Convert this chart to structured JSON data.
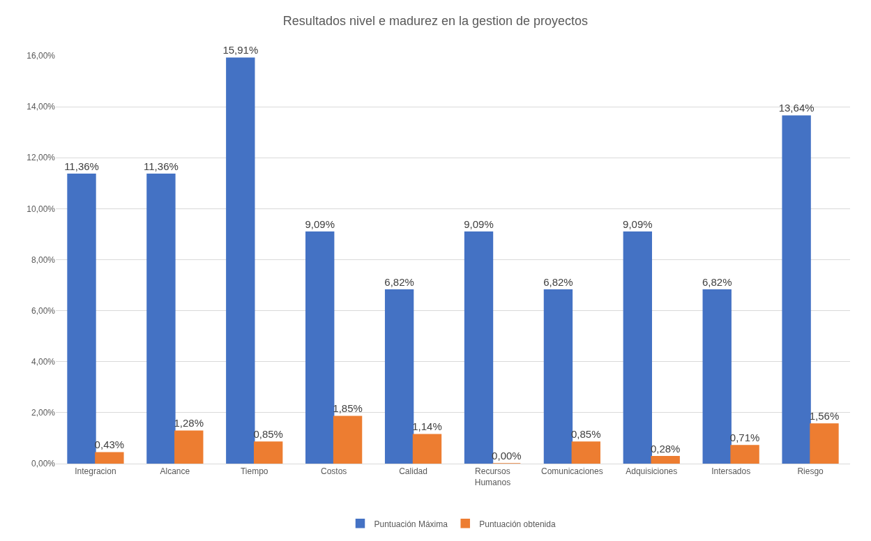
{
  "chart_data": {
    "type": "bar",
    "title": "Resultados nivel e madurez en la gestion de proyectos",
    "categories": [
      "Integracion",
      "Alcance",
      "Tiempo",
      "Costos",
      "Calidad",
      "Recursos Humanos",
      "Comunicaciones",
      "Adquisiciones",
      "Intersados",
      "Riesgo"
    ],
    "series": [
      {
        "name": "Puntuación Máxima",
        "color": "#4472c4",
        "values": [
          11.36,
          11.36,
          15.91,
          9.09,
          6.82,
          9.09,
          6.82,
          9.09,
          6.82,
          13.64
        ],
        "value_labels": [
          "11,36%",
          "11,36%",
          "15,91%",
          "9,09%",
          "6,82%",
          "9,09%",
          "6,82%",
          "9,09%",
          "6,82%",
          "13,64%"
        ]
      },
      {
        "name": "Puntuación obtenida",
        "color": "#ed7d31",
        "values": [
          0.43,
          1.28,
          0.85,
          1.85,
          1.14,
          0.0,
          0.85,
          0.28,
          0.71,
          1.56
        ],
        "value_labels": [
          "0,43%",
          "1,28%",
          "0,85%",
          "1,85%",
          "1,14%",
          "0,00%",
          "0,85%",
          "0,28%",
          "0,71%",
          "1,56%"
        ]
      }
    ],
    "ylim": [
      0,
      16
    ],
    "yticks": [
      {
        "value": 0,
        "label": "0,00%"
      },
      {
        "value": 2,
        "label": "2,00%"
      },
      {
        "value": 4,
        "label": "4,00%"
      },
      {
        "value": 6,
        "label": "6,00%"
      },
      {
        "value": 8,
        "label": "8,00%"
      },
      {
        "value": 10,
        "label": "10,00%"
      },
      {
        "value": 12,
        "label": "12,00%"
      },
      {
        "value": 14,
        "label": "14,00%"
      },
      {
        "value": 16,
        "label": "16,00%"
      }
    ],
    "grid": "y",
    "legend": "bottom"
  }
}
